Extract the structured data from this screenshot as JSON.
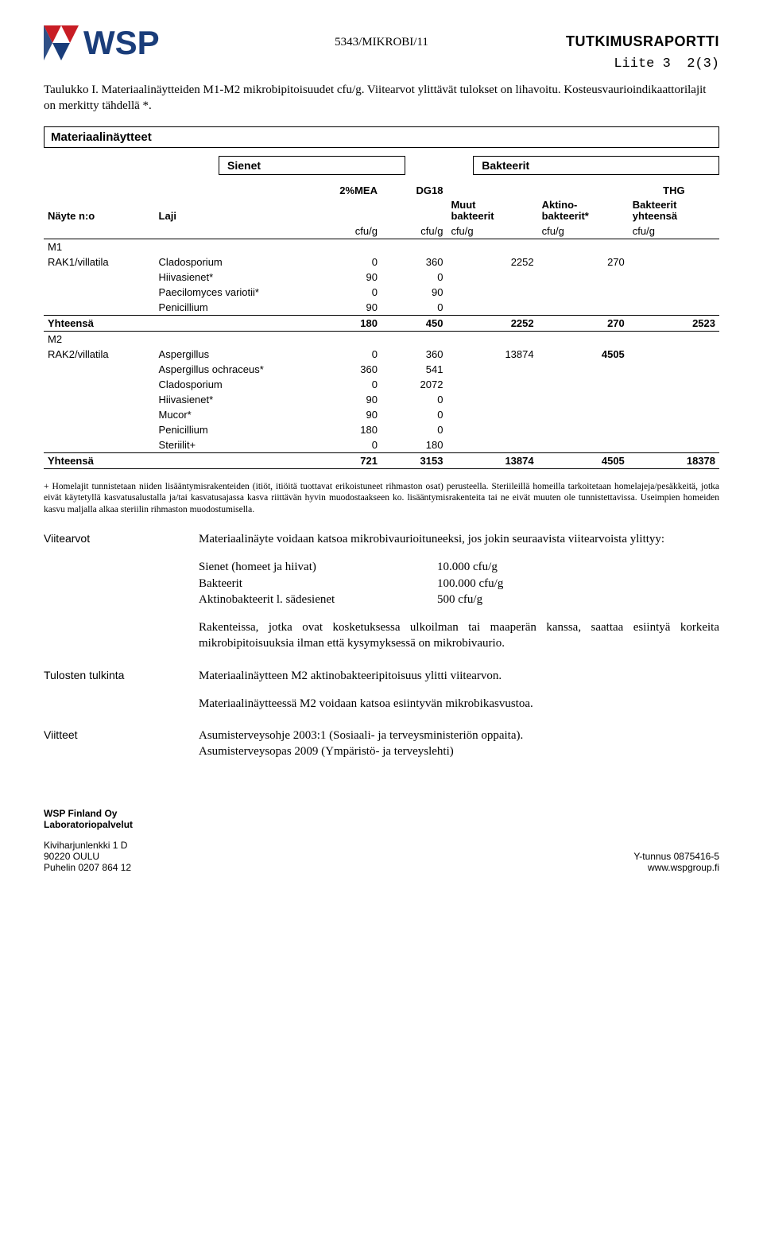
{
  "header": {
    "logo_text": "WSP",
    "center_ref": "5343/MIKROBI/11",
    "right_title": "TUTKIMUSRAPORTTI",
    "liite": "Liite 3",
    "pages": "2(3)"
  },
  "intro": "Taulukko I. Materiaalinäytteiden M1-M2 mikrobipitoisuudet cfu/g. Viitearvot ylittävät tulokset on lihavoitu. Kosteusvaurioindikaattorilajit on merkitty tähdellä *.",
  "box_title": "Materiaalinäytteet",
  "categories": {
    "c1": "Sienet",
    "c2": "Bakteerit"
  },
  "table": {
    "cols": {
      "nayte": "Näyte n:o",
      "laji": "Laji",
      "g1": "2%MEA",
      "g2": "DG18",
      "thg": "THG",
      "muut": "Muut bakteerit",
      "aktino": "Aktino-bakteerit*",
      "bakyht": "Bakteerit yhteensä",
      "unit": "cfu/g"
    },
    "rows": [
      {
        "n": "M1",
        "l": "",
        "a": "",
        "b": "",
        "c": "",
        "d": "",
        "e": "",
        "sec": "start"
      },
      {
        "n": "RAK1/villatila",
        "l": "Cladosporium",
        "a": "0",
        "b": "360",
        "c": "2252",
        "d": "270",
        "e": ""
      },
      {
        "n": "",
        "l": "Hiivasienet*",
        "a": "90",
        "b": "0",
        "c": "",
        "d": "",
        "e": ""
      },
      {
        "n": "",
        "l": "Paecilomyces variotii*",
        "a": "0",
        "b": "90",
        "c": "",
        "d": "",
        "e": ""
      },
      {
        "n": "",
        "l": "Penicillium",
        "a": "90",
        "b": "0",
        "c": "",
        "d": "",
        "e": "",
        "sec": "bottom"
      },
      {
        "n": "Yhteensä",
        "l": "",
        "a": "180",
        "b": "450",
        "c": "2252",
        "d": "270",
        "e": "2523",
        "sum": true,
        "sec": "bottom"
      },
      {
        "n": "M2",
        "l": "",
        "a": "",
        "b": "",
        "c": "",
        "d": "",
        "e": "",
        "sec": "start"
      },
      {
        "n": "RAK2/villatila",
        "l": "Aspergillus",
        "a": "0",
        "b": "360",
        "c": "13874",
        "d": "4505",
        "e": ""
      },
      {
        "n": "",
        "l": "Aspergillus ochraceus*",
        "a": "360",
        "b": "541",
        "c": "",
        "d": "",
        "e": ""
      },
      {
        "n": "",
        "l": "Cladosporium",
        "a": "0",
        "b": "2072",
        "c": "",
        "d": "",
        "e": ""
      },
      {
        "n": "",
        "l": "Hiivasienet*",
        "a": "90",
        "b": "0",
        "c": "",
        "d": "",
        "e": ""
      },
      {
        "n": "",
        "l": "Mucor*",
        "a": "90",
        "b": "0",
        "c": "",
        "d": "",
        "e": ""
      },
      {
        "n": "",
        "l": "Penicillium",
        "a": "180",
        "b": "0",
        "c": "",
        "d": "",
        "e": ""
      },
      {
        "n": "",
        "l": "Steriilit+",
        "a": "0",
        "b": "180",
        "c": "",
        "d": "",
        "e": "",
        "sec": "bottom"
      },
      {
        "n": "Yhteensä",
        "l": "",
        "a": "721",
        "b": "3153",
        "c": "13874",
        "d": "4505",
        "e": "18378",
        "sum": true,
        "sec": "bottom"
      }
    ]
  },
  "fine": "+ Homelajit tunnistetaan niiden lisääntymisrakenteiden (itiöt, itiöitä tuottavat erikoistuneet rihmaston osat) perusteella. Steriileillä homeilla tarkoitetaan homelajeja/pesäkkeitä, jotka eivät käytetyllä kasvatusalustalla ja/tai kasvatusajassa kasva riittävän hyvin muodostaakseen ko. lisääntymisrakenteita tai ne eivät muuten ole tunnistettavissa. Useimpien homeiden kasvu maljalla alkaa steriilin rihmaston muodostumisella.",
  "viitearvot": {
    "label": "Viitearvot",
    "intro": "Materiaalinäyte voidaan katsoa mikrobivaurioituneeksi, jos jokin seuraavista viitearvoista ylittyy:",
    "refs": [
      {
        "k": "Sienet (homeet ja hiivat)",
        "v": "10.000 cfu/g"
      },
      {
        "k": "Bakteerit",
        "v": "100.000 cfu/g"
      },
      {
        "k": "Aktinobakteerit l. sädesienet",
        "v": "500 cfu/g"
      }
    ],
    "extra": "Rakenteissa, jotka ovat kosketuksessa ulkoilman tai maaperän kanssa, saattaa esiintyä korkeita mikrobipitoisuuksia ilman että kysymyksessä on mikrobivaurio."
  },
  "tulkinta": {
    "label": "Tulosten tulkinta",
    "p1": "Materiaalinäytteen M2 aktinobakteeripitoisuus ylitti viitearvon.",
    "p2": "Materiaalinäytteessä M2 voidaan katsoa esiintyvän mikrobikasvustoa."
  },
  "viitteet": {
    "label": "Viitteet",
    "p1": "Asumisterveysohje 2003:1 (Sosiaali- ja terveysministeriön oppaita).",
    "p2": "Asumisterveysopas 2009 (Ympäristö- ja terveyslehti)"
  },
  "footer": {
    "company": "WSP Finland Oy",
    "dept": "Laboratoriopalvelut",
    "addr1": "Kiviharjunlenkki 1 D",
    "addr2": "90220 OULU",
    "addr3": "Puhelin 0207 864 12",
    "yt": "Y-tunnus 0875416-5",
    "web": "www.wspgroup.fi"
  },
  "colors": {
    "logo_red": "#c81d25",
    "logo_blue": "#1a3d7a"
  }
}
